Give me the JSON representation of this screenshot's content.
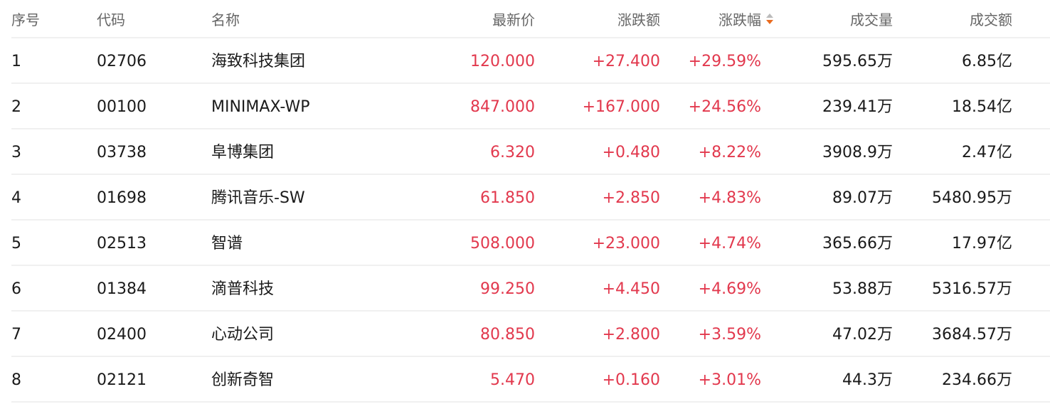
{
  "header": {
    "index": "序号",
    "code": "代码",
    "name": "名称",
    "price": "最新价",
    "change": "涨跌额",
    "pct": "涨跌幅",
    "volume": "成交量",
    "turnover": "成交额",
    "sort_column": "涨跌幅",
    "sort_direction": "descending"
  },
  "colors": {
    "up": "#e2384d",
    "sort_active": "#e96b1f"
  },
  "rows": [
    {
      "index": "1",
      "code": "02706",
      "name": "海致科技集团",
      "price": "120.000",
      "change": "+27.400",
      "pct": "+29.59%",
      "volume": "595.65万",
      "turnover": "6.85亿"
    },
    {
      "index": "2",
      "code": "00100",
      "name": "MINIMAX-WP",
      "price": "847.000",
      "change": "+167.000",
      "pct": "+24.56%",
      "volume": "239.41万",
      "turnover": "18.54亿"
    },
    {
      "index": "3",
      "code": "03738",
      "name": "阜博集团",
      "price": "6.320",
      "change": "+0.480",
      "pct": "+8.22%",
      "volume": "3908.9万",
      "turnover": "2.47亿"
    },
    {
      "index": "4",
      "code": "01698",
      "name": "腾讯音乐-SW",
      "price": "61.850",
      "change": "+2.850",
      "pct": "+4.83%",
      "volume": "89.07万",
      "turnover": "5480.95万"
    },
    {
      "index": "5",
      "code": "02513",
      "name": "智谱",
      "price": "508.000",
      "change": "+23.000",
      "pct": "+4.74%",
      "volume": "365.66万",
      "turnover": "17.97亿"
    },
    {
      "index": "6",
      "code": "01384",
      "name": "滴普科技",
      "price": "99.250",
      "change": "+4.450",
      "pct": "+4.69%",
      "volume": "53.88万",
      "turnover": "5316.57万"
    },
    {
      "index": "7",
      "code": "02400",
      "name": "心动公司",
      "price": "80.850",
      "change": "+2.800",
      "pct": "+3.59%",
      "volume": "47.02万",
      "turnover": "3684.57万"
    },
    {
      "index": "8",
      "code": "02121",
      "name": "创新奇智",
      "price": "5.470",
      "change": "+0.160",
      "pct": "+3.01%",
      "volume": "44.3万",
      "turnover": "234.66万"
    }
  ]
}
